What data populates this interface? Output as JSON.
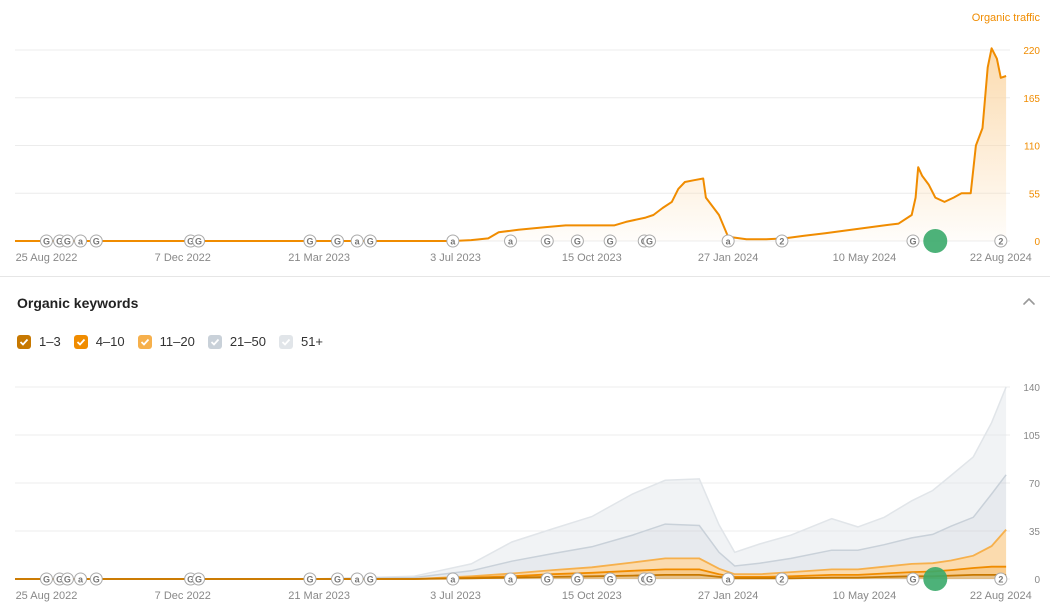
{
  "traffic_panel": {
    "series_label": "Organic traffic",
    "colors": {
      "line": "#f08c00",
      "fill": "#fbd7a6",
      "grid": "#ececec",
      "axis_text": "#888888",
      "right_axis_text": "#f08c00"
    }
  },
  "keywords_panel": {
    "title": "Organic keywords",
    "legend": [
      {
        "label": "1–3",
        "color": "#c77800"
      },
      {
        "label": "4–10",
        "color": "#f08c00"
      },
      {
        "label": "11–20",
        "color": "#f6b04c"
      },
      {
        "label": "21–50",
        "color": "#c9d1d9"
      },
      {
        "label": "51+",
        "color": "#e1e5e9"
      }
    ],
    "colors": {
      "grid": "#ececec",
      "axis_text": "#888888"
    }
  },
  "chart_data": [
    {
      "type": "area",
      "xlabel": "",
      "ylabel": "Organic traffic",
      "ylim": [
        0,
        220
      ],
      "yticks": [
        0,
        55,
        110,
        165,
        220
      ],
      "x_tick_labels": [
        "25 Aug 2022",
        "7 Dec 2022",
        "21 Mar 2023",
        "3 Jul 2023",
        "15 Oct 2023",
        "27 Jan 2024",
        "10 May 2024",
        "22 Aug 2024"
      ],
      "xlim": [
        "2022-08-01",
        "2024-08-29"
      ],
      "grid": true,
      "series": [
        {
          "name": "Organic traffic",
          "points": [
            [
              "2022-08-01",
              0
            ],
            [
              "2023-07-01",
              0
            ],
            [
              "2023-07-15",
              1
            ],
            [
              "2023-07-28",
              3
            ],
            [
              "2023-08-05",
              10
            ],
            [
              "2023-08-20",
              13
            ],
            [
              "2023-09-10",
              16
            ],
            [
              "2023-09-25",
              18
            ],
            [
              "2023-10-10",
              18
            ],
            [
              "2023-11-01",
              18
            ],
            [
              "2023-11-10",
              22
            ],
            [
              "2023-11-25",
              27
            ],
            [
              "2023-12-01",
              30
            ],
            [
              "2023-12-08",
              38
            ],
            [
              "2023-12-15",
              45
            ],
            [
              "2023-12-20",
              60
            ],
            [
              "2023-12-25",
              68
            ],
            [
              "2024-01-01",
              70
            ],
            [
              "2024-01-08",
              72
            ],
            [
              "2024-01-10",
              50
            ],
            [
              "2024-01-20",
              30
            ],
            [
              "2024-01-27",
              5
            ],
            [
              "2024-02-10",
              2
            ],
            [
              "2024-02-25",
              2
            ],
            [
              "2024-03-10",
              3
            ],
            [
              "2024-03-25",
              6
            ],
            [
              "2024-04-10",
              9
            ],
            [
              "2024-04-25",
              12
            ],
            [
              "2024-05-10",
              15
            ],
            [
              "2024-05-25",
              18
            ],
            [
              "2024-06-05",
              20
            ],
            [
              "2024-06-15",
              30
            ],
            [
              "2024-06-18",
              50
            ],
            [
              "2024-06-20",
              85
            ],
            [
              "2024-06-23",
              75
            ],
            [
              "2024-06-28",
              65
            ],
            [
              "2024-07-03",
              50
            ],
            [
              "2024-07-10",
              45
            ],
            [
              "2024-07-17",
              50
            ],
            [
              "2024-07-23",
              55
            ],
            [
              "2024-07-30",
              55
            ],
            [
              "2024-08-03",
              110
            ],
            [
              "2024-08-08",
              130
            ],
            [
              "2024-08-12",
              200
            ],
            [
              "2024-08-15",
              222
            ],
            [
              "2024-08-19",
              210
            ],
            [
              "2024-08-22",
              188
            ],
            [
              "2024-08-26",
              190
            ]
          ]
        }
      ],
      "annotations": [
        {
          "date": "2022-08-25",
          "label": "G"
        },
        {
          "date": "2022-09-04",
          "label": "G"
        },
        {
          "date": "2022-09-10",
          "label": "G"
        },
        {
          "date": "2022-09-20",
          "label": "a"
        },
        {
          "date": "2022-10-02",
          "label": "G"
        },
        {
          "date": "2022-12-13",
          "label": "G"
        },
        {
          "date": "2022-12-19",
          "label": "G"
        },
        {
          "date": "2023-03-14",
          "label": "G"
        },
        {
          "date": "2023-04-04",
          "label": "G"
        },
        {
          "date": "2023-04-19",
          "label": "a"
        },
        {
          "date": "2023-04-29",
          "label": "G"
        },
        {
          "date": "2023-07-01",
          "label": "a"
        },
        {
          "date": "2023-08-14",
          "label": "a"
        },
        {
          "date": "2023-09-11",
          "label": "G"
        },
        {
          "date": "2023-10-04",
          "label": "G"
        },
        {
          "date": "2023-10-29",
          "label": "G"
        },
        {
          "date": "2023-11-24",
          "label": "G"
        },
        {
          "date": "2023-11-28",
          "label": "G"
        },
        {
          "date": "2024-01-27",
          "label": "a"
        },
        {
          "date": "2024-03-08",
          "label": "2"
        },
        {
          "date": "2024-06-16",
          "label": "G"
        },
        {
          "date": "2024-07-03",
          "label": "marker"
        },
        {
          "date": "2024-08-22",
          "label": "2"
        }
      ]
    },
    {
      "type": "area",
      "title": "Organic keywords",
      "xlabel": "",
      "ylabel": "",
      "ylim": [
        0,
        140
      ],
      "yticks": [
        0,
        35,
        70,
        105,
        140
      ],
      "x_tick_labels": [
        "25 Aug 2022",
        "7 Dec 2022",
        "21 Mar 2023",
        "3 Jul 2023",
        "15 Oct 2023",
        "27 Jan 2024",
        "10 May 2024",
        "22 Aug 2024"
      ],
      "xlim": [
        "2022-08-01",
        "2024-08-29"
      ],
      "stacked": true,
      "grid": true,
      "dates": [
        "2022-08-01",
        "2023-03-15",
        "2023-06-01",
        "2023-07-15",
        "2023-08-15",
        "2023-09-15",
        "2023-10-15",
        "2023-11-15",
        "2023-12-10",
        "2024-01-05",
        "2024-01-20",
        "2024-02-01",
        "2024-02-20",
        "2024-03-15",
        "2024-04-15",
        "2024-05-05",
        "2024-05-25",
        "2024-06-15",
        "2024-07-01",
        "2024-07-15",
        "2024-08-01",
        "2024-08-15",
        "2024-08-26"
      ],
      "series": [
        {
          "name": "1–3",
          "values": [
            0,
            0,
            0,
            0.5,
            1,
            1.5,
            2,
            2.5,
            3,
            3,
            1.5,
            0.5,
            0.5,
            0.5,
            1,
            1,
            1.5,
            2,
            2,
            2.5,
            3,
            3,
            3
          ]
        },
        {
          "name": "4–10",
          "values": [
            0,
            0,
            0,
            0.5,
            1,
            2,
            2.5,
            3.5,
            4,
            4,
            2,
            1,
            1,
            1.5,
            2,
            2,
            2.5,
            3,
            3.5,
            4,
            5,
            6,
            6
          ]
        },
        {
          "name": "11–20",
          "values": [
            0,
            0,
            0,
            1,
            2,
            3,
            4,
            6,
            8,
            8,
            4,
            2,
            2,
            3,
            4,
            4,
            5,
            6,
            6,
            7,
            9,
            15,
            27
          ]
        },
        {
          "name": "21–50",
          "values": [
            0,
            0,
            1,
            4,
            9,
            12,
            15,
            20,
            25,
            24,
            12,
            6,
            8,
            10,
            14,
            14,
            16,
            19,
            21,
            25,
            28,
            38,
            40
          ]
        },
        {
          "name": "51+",
          "values": [
            0,
            0,
            1,
            5,
            14,
            18,
            22,
            30,
            32,
            34,
            20,
            10,
            14,
            17,
            23,
            17,
            20,
            27,
            32,
            37,
            44,
            52,
            64
          ]
        }
      ],
      "annotations": [
        {
          "date": "2022-08-25",
          "label": "G"
        },
        {
          "date": "2022-09-04",
          "label": "G"
        },
        {
          "date": "2022-09-10",
          "label": "G"
        },
        {
          "date": "2022-09-20",
          "label": "a"
        },
        {
          "date": "2022-10-02",
          "label": "G"
        },
        {
          "date": "2022-12-13",
          "label": "G"
        },
        {
          "date": "2022-12-19",
          "label": "G"
        },
        {
          "date": "2023-03-14",
          "label": "G"
        },
        {
          "date": "2023-04-04",
          "label": "G"
        },
        {
          "date": "2023-04-19",
          "label": "a"
        },
        {
          "date": "2023-04-29",
          "label": "G"
        },
        {
          "date": "2023-07-01",
          "label": "a"
        },
        {
          "date": "2023-08-14",
          "label": "a"
        },
        {
          "date": "2023-09-11",
          "label": "G"
        },
        {
          "date": "2023-10-04",
          "label": "G"
        },
        {
          "date": "2023-10-29",
          "label": "G"
        },
        {
          "date": "2023-11-24",
          "label": "G"
        },
        {
          "date": "2023-11-28",
          "label": "G"
        },
        {
          "date": "2024-01-27",
          "label": "a"
        },
        {
          "date": "2024-03-08",
          "label": "2"
        },
        {
          "date": "2024-06-16",
          "label": "G"
        },
        {
          "date": "2024-07-03",
          "label": "marker"
        },
        {
          "date": "2024-08-22",
          "label": "2"
        }
      ]
    }
  ]
}
